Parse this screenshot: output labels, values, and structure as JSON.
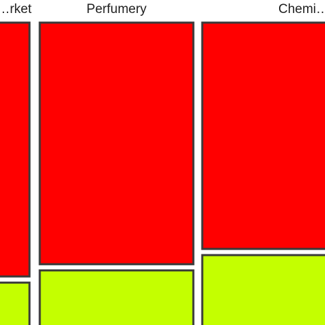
{
  "chart_data": {
    "type": "mosaic",
    "categories": [
      "…rket",
      "Perfumery",
      "Chemi…"
    ],
    "series": [
      {
        "color": "#ff0000",
        "values": [
          0.83,
          0.79,
          0.74
        ]
      },
      {
        "color": "#c4ff00",
        "values": [
          0.17,
          0.21,
          0.26
        ]
      }
    ],
    "title": "",
    "xlabel": "",
    "ylabel": "",
    "grid": false,
    "legend": "none"
  },
  "colors": {
    "segment_stroke": "#3a3a3a",
    "label_text": "#1f1f1f",
    "background": "#ffffff"
  }
}
